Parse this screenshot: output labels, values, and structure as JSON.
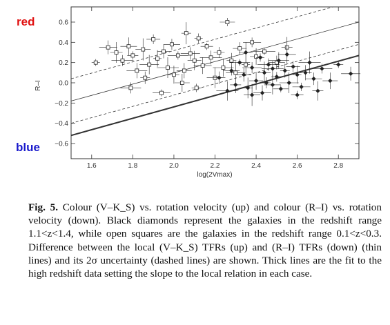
{
  "labels": {
    "top": "red",
    "bottom": "blue"
  },
  "colors": {
    "red_label": "#e01010",
    "blue_label": "#1a1acc",
    "axes": "#333333",
    "points": "#222222"
  },
  "caption": {
    "fig": "Fig. 5.",
    "text": " Colour (V–K_S) vs. rotation velocity (up) and colour (R–I) vs. rotation velocity (down). Black diamonds represent the galaxies in the redshift range 1.1<z<1.4, while open squares are the galaxies in the redshift range 0.1<z<0.3. Difference between the local (V–K_S) TFRs (up) and (R–I) TFRs (down) (thin lines) and its 2σ uncertainty (dashed lines) are shown. Thick lines are the fit to the high redshift data setting the slope to the local relation in each case."
  },
  "chart_data": {
    "type": "scatter",
    "xlabel": "log(2Vmax)",
    "ylabel": "R–I",
    "xlim": [
      1.5,
      2.9
    ],
    "ylim": [
      -0.75,
      0.75
    ],
    "xticks": [
      1.6,
      1.8,
      2.0,
      2.2,
      2.4,
      2.6,
      2.8
    ],
    "yticks": [
      -0.6,
      -0.4,
      -0.2,
      0.0,
      0.2,
      0.4,
      0.6
    ],
    "ytick_labels": [
      "−0.6",
      "−0.4",
      "−0.2",
      "0.0",
      "0.2",
      "0.4",
      "0.6"
    ],
    "lines": [
      {
        "name": "local TFR",
        "style": "thin",
        "points": [
          [
            1.5,
            -0.18
          ],
          [
            2.9,
            0.6
          ]
        ]
      },
      {
        "name": "local TFR +2σ",
        "style": "dashed",
        "points": [
          [
            1.5,
            0.04
          ],
          [
            2.9,
            0.82
          ]
        ]
      },
      {
        "name": "local TFR −2σ",
        "style": "dashed",
        "points": [
          [
            1.5,
            -0.4
          ],
          [
            2.9,
            0.38
          ]
        ]
      },
      {
        "name": "high-z fit",
        "style": "thick",
        "points": [
          [
            1.5,
            -0.52
          ],
          [
            2.9,
            0.27
          ]
        ]
      }
    ],
    "series": [
      {
        "name": "0.1<z<0.3",
        "marker": "open-square",
        "points": [
          [
            1.62,
            0.2
          ],
          [
            1.68,
            0.35
          ],
          [
            1.72,
            0.3
          ],
          [
            1.75,
            0.22
          ],
          [
            1.78,
            0.36
          ],
          [
            1.8,
            0.27
          ],
          [
            1.82,
            0.12
          ],
          [
            1.85,
            0.33
          ],
          [
            1.86,
            0.05
          ],
          [
            1.88,
            0.18
          ],
          [
            1.9,
            0.43
          ],
          [
            1.92,
            0.24
          ],
          [
            1.94,
            -0.1
          ],
          [
            1.95,
            0.31
          ],
          [
            1.97,
            0.15
          ],
          [
            1.99,
            0.38
          ],
          [
            2.0,
            0.08
          ],
          [
            2.02,
            0.27
          ],
          [
            2.05,
            0.12
          ],
          [
            2.06,
            0.49
          ],
          [
            2.08,
            0.29
          ],
          [
            2.1,
            0.22
          ],
          [
            2.12,
            0.44
          ],
          [
            2.14,
            0.17
          ],
          [
            2.16,
            0.36
          ],
          [
            2.18,
            0.25
          ],
          [
            2.2,
            0.05
          ],
          [
            2.22,
            0.3
          ],
          [
            2.24,
            0.15
          ],
          [
            2.26,
            0.6
          ],
          [
            2.28,
            0.22
          ],
          [
            2.3,
            0.1
          ],
          [
            2.32,
            0.34
          ],
          [
            2.35,
            0.18
          ],
          [
            2.38,
            0.4
          ],
          [
            2.4,
            0.26
          ],
          [
            2.44,
            0.31
          ],
          [
            2.5,
            0.2
          ],
          [
            2.55,
            0.35
          ],
          [
            1.79,
            -0.05
          ],
          [
            2.04,
            0.0
          ],
          [
            2.11,
            -0.05
          ]
        ]
      },
      {
        "name": "1.1<z<1.4",
        "marker": "filled-diamond",
        "points": [
          [
            2.22,
            0.05
          ],
          [
            2.26,
            -0.08
          ],
          [
            2.28,
            0.12
          ],
          [
            2.3,
            -0.02
          ],
          [
            2.32,
            0.2
          ],
          [
            2.34,
            0.08
          ],
          [
            2.36,
            -0.05
          ],
          [
            2.38,
            0.15
          ],
          [
            2.4,
            0.02
          ],
          [
            2.42,
            0.25
          ],
          [
            2.43,
            -0.1
          ],
          [
            2.44,
            0.1
          ],
          [
            2.46,
            0.18
          ],
          [
            2.48,
            -0.02
          ],
          [
            2.5,
            0.06
          ],
          [
            2.51,
            0.22
          ],
          [
            2.52,
            -0.06
          ],
          [
            2.54,
            0.12
          ],
          [
            2.56,
            0.0
          ],
          [
            2.58,
            0.16
          ],
          [
            2.6,
            0.08
          ],
          [
            2.62,
            -0.04
          ],
          [
            2.64,
            0.1
          ],
          [
            2.66,
            0.2
          ],
          [
            2.68,
            0.04
          ],
          [
            2.7,
            -0.08
          ],
          [
            2.72,
            0.14
          ],
          [
            2.76,
            0.02
          ],
          [
            2.8,
            0.18
          ],
          [
            2.86,
            0.09
          ],
          [
            2.35,
            0.3
          ],
          [
            2.45,
            0.0
          ],
          [
            2.55,
            0.28
          ],
          [
            2.6,
            -0.12
          ],
          [
            2.48,
            0.14
          ],
          [
            2.38,
            -0.12
          ]
        ]
      }
    ]
  }
}
